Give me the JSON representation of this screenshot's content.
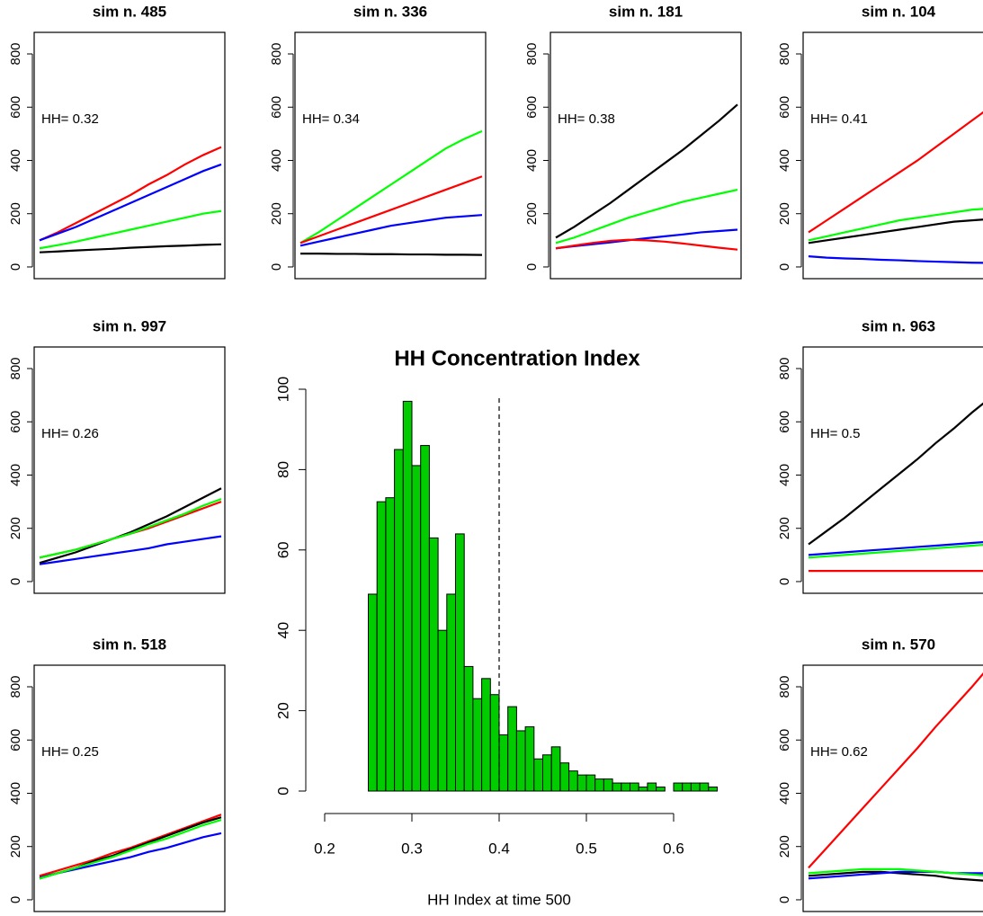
{
  "chart_data": [
    {
      "type": "histogram",
      "title": "HH Concentration Index",
      "xlabel": "HH Index at time 500",
      "bins": [
        0.25,
        0.26,
        0.27,
        0.28,
        0.29,
        0.3,
        0.31,
        0.32,
        0.33,
        0.34,
        0.35,
        0.36,
        0.37,
        0.38,
        0.39,
        0.4,
        0.41,
        0.42,
        0.43,
        0.44,
        0.45,
        0.46,
        0.47,
        0.48,
        0.49,
        0.5,
        0.51,
        0.52,
        0.53,
        0.54,
        0.55,
        0.56,
        0.57,
        0.58,
        0.59,
        0.6,
        0.61,
        0.62,
        0.63,
        0.64,
        0.65
      ],
      "counts": [
        49,
        72,
        73,
        85,
        97,
        81,
        86,
        63,
        40,
        49,
        64,
        31,
        23,
        28,
        24,
        14,
        21,
        15,
        16,
        8,
        9,
        11,
        7,
        5,
        4,
        4,
        3,
        3,
        2,
        2,
        2,
        1,
        2,
        1,
        0,
        2,
        2,
        2,
        2,
        1
      ],
      "color": "#00cc00",
      "vline": 0.4,
      "xlim": [
        0.2,
        0.65
      ],
      "ylim": [
        0,
        100
      ],
      "xticks": [
        0.2,
        0.3,
        0.4,
        0.5,
        0.6
      ],
      "yticks": [
        0,
        20,
        40,
        60,
        80,
        100
      ]
    },
    {
      "type": "line",
      "title": "sim n. 485",
      "annotation": "HH= 0.32",
      "x": [
        0,
        50,
        100,
        150,
        200,
        250,
        300,
        350,
        400,
        450,
        500
      ],
      "xlim": [
        0,
        500
      ],
      "ylim": [
        -44,
        881
      ],
      "yticks": [
        0,
        200,
        400,
        600,
        800
      ],
      "series": [
        {
          "color": "#ff0000",
          "values": [
            100,
            130,
            165,
            200,
            235,
            270,
            310,
            345,
            385,
            420,
            450
          ]
        },
        {
          "color": "#0000ff",
          "values": [
            100,
            125,
            150,
            180,
            210,
            240,
            270,
            300,
            330,
            360,
            385
          ]
        },
        {
          "color": "#00ff00",
          "values": [
            70,
            82,
            95,
            110,
            125,
            140,
            155,
            170,
            185,
            200,
            210
          ]
        },
        {
          "color": "#000000",
          "values": [
            55,
            58,
            62,
            65,
            68,
            72,
            75,
            78,
            80,
            83,
            85
          ]
        }
      ]
    },
    {
      "type": "line",
      "title": "sim n. 336",
      "annotation": "HH= 0.34",
      "x": [
        0,
        50,
        100,
        150,
        200,
        250,
        300,
        350,
        400,
        450,
        500
      ],
      "xlim": [
        0,
        500
      ],
      "ylim": [
        -44,
        881
      ],
      "yticks": [
        0,
        200,
        400,
        600,
        800
      ],
      "series": [
        {
          "color": "#00ff00",
          "values": [
            90,
            130,
            175,
            220,
            265,
            310,
            355,
            400,
            445,
            480,
            510
          ]
        },
        {
          "color": "#ff0000",
          "values": [
            90,
            115,
            140,
            165,
            190,
            215,
            240,
            265,
            290,
            315,
            340
          ]
        },
        {
          "color": "#0000ff",
          "values": [
            80,
            95,
            110,
            125,
            140,
            155,
            165,
            175,
            185,
            190,
            195
          ]
        },
        {
          "color": "#000000",
          "values": [
            50,
            50,
            49,
            49,
            48,
            48,
            47,
            47,
            46,
            46,
            45
          ]
        }
      ]
    },
    {
      "type": "line",
      "title": "sim n. 181",
      "annotation": "HH= 0.38",
      "x": [
        0,
        50,
        100,
        150,
        200,
        250,
        300,
        350,
        400,
        450,
        500
      ],
      "xlim": [
        0,
        500
      ],
      "ylim": [
        -44,
        881
      ],
      "yticks": [
        0,
        200,
        400,
        600,
        800
      ],
      "series": [
        {
          "color": "#000000",
          "values": [
            110,
            150,
            195,
            240,
            290,
            340,
            390,
            440,
            495,
            550,
            610
          ]
        },
        {
          "color": "#00ff00",
          "values": [
            90,
            110,
            135,
            160,
            185,
            205,
            225,
            245,
            260,
            275,
            290
          ]
        },
        {
          "color": "#0000ff",
          "values": [
            70,
            78,
            85,
            92,
            100,
            108,
            115,
            122,
            130,
            135,
            140
          ]
        },
        {
          "color": "#ff0000",
          "values": [
            70,
            80,
            90,
            98,
            102,
            100,
            95,
            88,
            80,
            72,
            65
          ]
        }
      ]
    },
    {
      "type": "line",
      "title": "sim n. 104",
      "annotation": "HH= 0.41",
      "x": [
        0,
        50,
        100,
        150,
        200,
        250,
        300,
        350,
        400,
        450,
        500
      ],
      "xlim": [
        0,
        500
      ],
      "ylim": [
        -44,
        881
      ],
      "yticks": [
        0,
        200,
        400,
        600,
        800
      ],
      "series": [
        {
          "color": "#ff0000",
          "values": [
            130,
            175,
            220,
            265,
            310,
            355,
            400,
            450,
            500,
            550,
            600
          ]
        },
        {
          "color": "#00ff00",
          "values": [
            100,
            115,
            130,
            145,
            160,
            175,
            185,
            195,
            205,
            215,
            220
          ]
        },
        {
          "color": "#000000",
          "values": [
            90,
            100,
            110,
            120,
            130,
            140,
            150,
            160,
            170,
            175,
            180
          ]
        },
        {
          "color": "#0000ff",
          "values": [
            40,
            35,
            32,
            30,
            27,
            25,
            22,
            20,
            18,
            16,
            15
          ]
        }
      ]
    },
    {
      "type": "line",
      "title": "sim n. 997",
      "annotation": "HH= 0.26",
      "x": [
        0,
        50,
        100,
        150,
        200,
        250,
        300,
        350,
        400,
        450,
        500
      ],
      "xlim": [
        0,
        500
      ],
      "ylim": [
        -44,
        881
      ],
      "yticks": [
        0,
        200,
        400,
        600,
        800
      ],
      "series": [
        {
          "color": "#0000ff",
          "values": [
            65,
            75,
            85,
            95,
            105,
            115,
            125,
            140,
            150,
            160,
            170
          ]
        },
        {
          "color": "#000000",
          "values": [
            70,
            90,
            110,
            135,
            160,
            185,
            215,
            245,
            280,
            315,
            350
          ]
        },
        {
          "color": "#ff0000",
          "values": [
            90,
            105,
            120,
            140,
            160,
            180,
            200,
            225,
            250,
            275,
            300
          ]
        },
        {
          "color": "#00ff00",
          "values": [
            90,
            105,
            120,
            140,
            160,
            180,
            205,
            230,
            255,
            285,
            310
          ]
        }
      ]
    },
    {
      "type": "line",
      "title": "sim n. 963",
      "annotation": "HH= 0.5",
      "x": [
        0,
        50,
        100,
        150,
        200,
        250,
        300,
        350,
        400,
        450,
        500
      ],
      "xlim": [
        0,
        500
      ],
      "ylim": [
        -44,
        881
      ],
      "yticks": [
        0,
        200,
        400,
        600,
        800
      ],
      "series": [
        {
          "color": "#000000",
          "values": [
            140,
            190,
            240,
            295,
            350,
            405,
            460,
            520,
            575,
            635,
            690
          ]
        },
        {
          "color": "#0000ff",
          "values": [
            100,
            105,
            110,
            115,
            120,
            125,
            130,
            135,
            140,
            145,
            150
          ]
        },
        {
          "color": "#00ff00",
          "values": [
            90,
            95,
            100,
            105,
            110,
            115,
            120,
            125,
            130,
            135,
            140
          ]
        },
        {
          "color": "#ff0000",
          "values": [
            40,
            40,
            40,
            40,
            40,
            40,
            40,
            40,
            40,
            40,
            40
          ]
        }
      ]
    },
    {
      "type": "line",
      "title": "sim n. 518",
      "annotation": "HH= 0.25",
      "x": [
        0,
        50,
        100,
        150,
        200,
        250,
        300,
        350,
        400,
        450,
        500
      ],
      "xlim": [
        0,
        500
      ],
      "ylim": [
        -44,
        881
      ],
      "yticks": [
        0,
        200,
        400,
        600,
        800
      ],
      "series": [
        {
          "color": "#0000ff",
          "values": [
            85,
            100,
            115,
            130,
            145,
            160,
            180,
            195,
            215,
            235,
            250
          ]
        },
        {
          "color": "#ff0000",
          "values": [
            90,
            110,
            130,
            150,
            175,
            195,
            220,
            245,
            270,
            295,
            320
          ]
        },
        {
          "color": "#000000",
          "values": [
            80,
            100,
            120,
            145,
            165,
            190,
            215,
            240,
            265,
            290,
            310
          ]
        },
        {
          "color": "#00ff00",
          "values": [
            80,
            100,
            120,
            140,
            160,
            185,
            210,
            230,
            255,
            280,
            300
          ]
        }
      ]
    },
    {
      "type": "line",
      "title": "sim n. 570",
      "annotation": "HH= 0.62",
      "x": [
        0,
        50,
        100,
        150,
        200,
        250,
        300,
        350,
        400,
        450,
        500
      ],
      "xlim": [
        0,
        500
      ],
      "ylim": [
        -44,
        881
      ],
      "yticks": [
        0,
        200,
        400,
        600,
        800
      ],
      "series": [
        {
          "color": "#ff0000",
          "values": [
            120,
            195,
            270,
            345,
            420,
            495,
            570,
            650,
            725,
            800,
            880
          ]
        },
        {
          "color": "#000000",
          "values": [
            90,
            95,
            100,
            105,
            105,
            100,
            95,
            90,
            80,
            75,
            70
          ]
        },
        {
          "color": "#0000ff",
          "values": [
            80,
            85,
            90,
            95,
            100,
            105,
            105,
            105,
            100,
            100,
            100
          ]
        },
        {
          "color": "#00ff00",
          "values": [
            100,
            105,
            110,
            115,
            115,
            115,
            110,
            105,
            100,
            95,
            90
          ]
        }
      ]
    }
  ]
}
